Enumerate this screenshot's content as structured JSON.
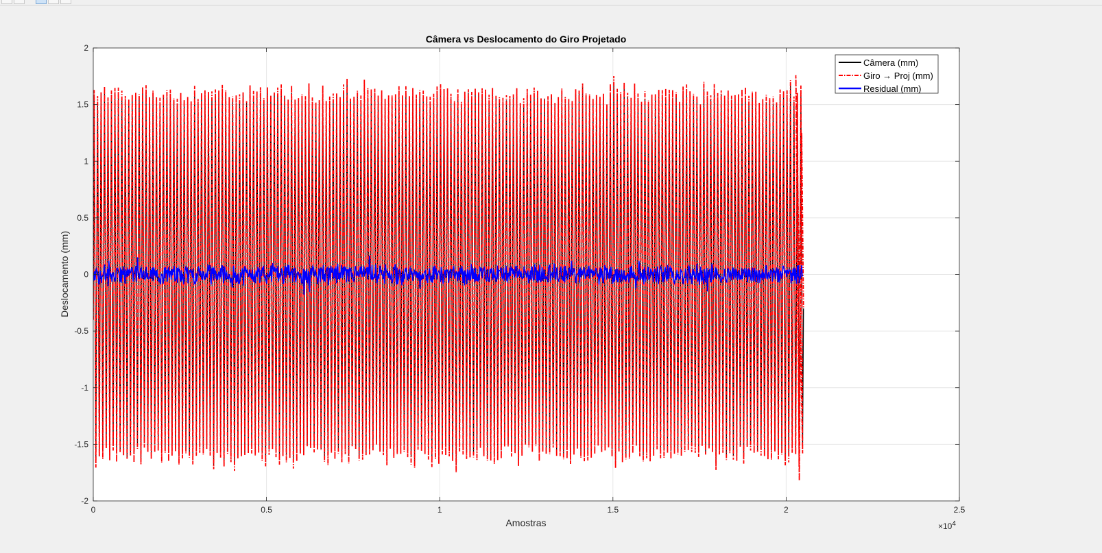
{
  "toolbar": {
    "buttons": [
      {
        "icon": "brush-icon"
      },
      {
        "icon": "datatip-icon"
      },
      {
        "icon": "pan-icon"
      },
      {
        "icon": "zoom-in-icon"
      },
      {
        "icon": "home-icon"
      }
    ]
  },
  "colors": {
    "camera": "#000000",
    "giro": "#ff0000",
    "residual": "#0000ff",
    "axes_bg": "#ffffff",
    "figure_bg": "#f0f0f0",
    "grid": "#e6e6e6"
  },
  "chart_data": {
    "type": "line",
    "title": "Câmera vs Deslocamento do Giro Projetado",
    "xlabel": "Amostras",
    "ylabel": "Deslocamento (mm)",
    "x_exponent_label": "×10",
    "x_exponent": "4",
    "xlim": [
      0,
      25000
    ],
    "ylim": [
      -2,
      2
    ],
    "xticks": [
      0,
      5000,
      10000,
      15000,
      20000,
      25000
    ],
    "xtick_labels": [
      "0",
      "0.5",
      "1",
      "1.5",
      "2",
      "2.5"
    ],
    "yticks": [
      -2,
      -1.5,
      -1,
      -0.5,
      0,
      0.5,
      1,
      1.5,
      2
    ],
    "ytick_labels": [
      "-2",
      "-1.5",
      "-1",
      "-0.5",
      "0",
      "0.5",
      "1",
      "1.5",
      "2"
    ],
    "grid": true,
    "legend_location": "top-right",
    "n_samples": 20500,
    "series": [
      {
        "name": "Câmera (mm)",
        "style": "solid",
        "amplitude_approx": 1.55,
        "cycles_approx": 205,
        "x_range": [
          0,
          20500
        ]
      },
      {
        "name": "Giro → Proj (mm)",
        "style": "dash-dot",
        "amplitude_approx": 1.6,
        "peak_max": 1.76,
        "peak_min": -1.86,
        "cycles_approx": 205,
        "x_range": [
          0,
          20500
        ]
      },
      {
        "name": "Residual (mm)",
        "style": "solid",
        "amplitude_approx": 0.12,
        "noise": true,
        "x_range": [
          0,
          20500
        ]
      }
    ]
  }
}
